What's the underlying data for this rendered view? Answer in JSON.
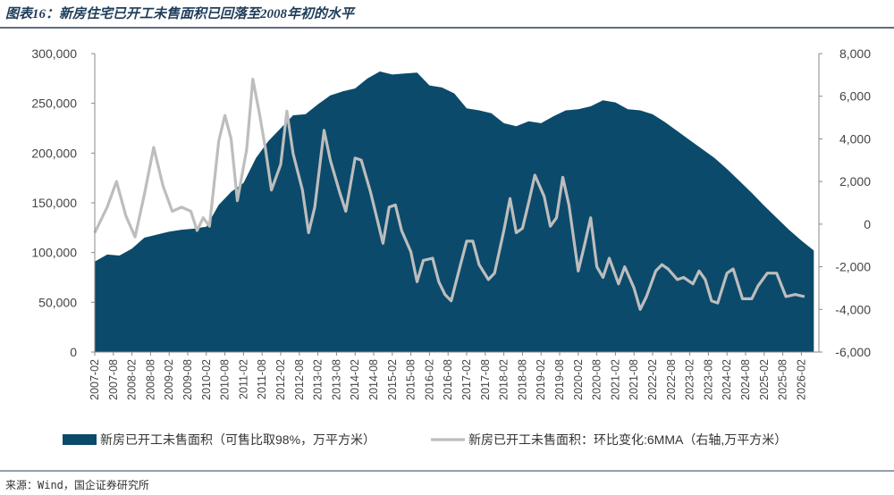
{
  "chart_data": {
    "type": "area",
    "title": "图表16：新房住宅已开工未售面积已回落至2008年初的水平",
    "source": "来源：Wind，国企证券研究所",
    "left_axis": {
      "ylim": [
        0,
        300000
      ],
      "ticks": [
        "300,000",
        "250,000",
        "200,000",
        "150,000",
        "100,000",
        "50,000",
        "0"
      ]
    },
    "right_axis": {
      "ylim": [
        -6000,
        8000
      ],
      "ticks": [
        "8,000",
        "6,000",
        "4,000",
        "2,000",
        "0",
        "-2,000",
        "-4,000",
        "-6,000"
      ]
    },
    "x_labels": [
      "2007-02",
      "2007-08",
      "2008-02",
      "2008-08",
      "2009-02",
      "2009-08",
      "2010-02",
      "2010-08",
      "2011-02",
      "2011-08",
      "2012-02",
      "2012-08",
      "2013-02",
      "2013-08",
      "2014-02",
      "2014-08",
      "2015-02",
      "2015-08",
      "2016-02",
      "2016-08",
      "2017-02",
      "2017-08",
      "2018-02",
      "2018-08",
      "2019-02",
      "2019-08",
      "2020-02",
      "2020-08",
      "2021-02",
      "2021-08",
      "2022-02",
      "2022-08",
      "2023-02",
      "2023-08",
      "2024-02",
      "2024-08",
      "2025-02",
      "2025-08",
      "2026-02"
    ],
    "grid": false,
    "legend_position": "bottom",
    "series": [
      {
        "name": "新房已开工未售面积（可售比取98%，万平方米）",
        "axis": "left",
        "kind": "area",
        "color": "#0b4a6b",
        "points": [
          [
            "2007-02",
            91000
          ],
          [
            "2007-06",
            98000
          ],
          [
            "2007-10",
            97000
          ],
          [
            "2008-02",
            104000
          ],
          [
            "2008-06",
            115000
          ],
          [
            "2008-10",
            118000
          ],
          [
            "2009-02",
            121000
          ],
          [
            "2009-06",
            123000
          ],
          [
            "2009-10",
            124000
          ],
          [
            "2010-02",
            126000
          ],
          [
            "2010-06",
            148000
          ],
          [
            "2010-10",
            161000
          ],
          [
            "2011-02",
            170000
          ],
          [
            "2011-06",
            195000
          ],
          [
            "2011-10",
            212000
          ],
          [
            "2012-02",
            225000
          ],
          [
            "2012-06",
            238000
          ],
          [
            "2012-10",
            239000
          ],
          [
            "2013-02",
            249000
          ],
          [
            "2013-06",
            258000
          ],
          [
            "2013-10",
            262000
          ],
          [
            "2014-02",
            265000
          ],
          [
            "2014-06",
            275000
          ],
          [
            "2014-10",
            282000
          ],
          [
            "2015-02",
            279000
          ],
          [
            "2015-06",
            280000
          ],
          [
            "2015-10",
            281000
          ],
          [
            "2016-02",
            268000
          ],
          [
            "2016-06",
            266000
          ],
          [
            "2016-10",
            260000
          ],
          [
            "2017-02",
            245000
          ],
          [
            "2017-06",
            243000
          ],
          [
            "2017-10",
            240000
          ],
          [
            "2018-02",
            230000
          ],
          [
            "2018-06",
            227000
          ],
          [
            "2018-10",
            232000
          ],
          [
            "2019-02",
            230000
          ],
          [
            "2019-06",
            237000
          ],
          [
            "2019-10",
            243000
          ],
          [
            "2020-02",
            244000
          ],
          [
            "2020-06",
            247000
          ],
          [
            "2020-10",
            253000
          ],
          [
            "2021-02",
            251000
          ],
          [
            "2021-06",
            244000
          ],
          [
            "2021-10",
            243000
          ],
          [
            "2022-02",
            239000
          ],
          [
            "2022-06",
            231000
          ],
          [
            "2022-10",
            222000
          ],
          [
            "2023-02",
            213000
          ],
          [
            "2023-06",
            204000
          ],
          [
            "2023-10",
            195000
          ],
          [
            "2024-02",
            184000
          ],
          [
            "2024-06",
            172000
          ],
          [
            "2024-10",
            160000
          ],
          [
            "2025-02",
            147000
          ],
          [
            "2025-06",
            135000
          ],
          [
            "2025-10",
            123000
          ],
          [
            "2026-02",
            112000
          ],
          [
            "2026-06",
            102000
          ]
        ]
      },
      {
        "name": "新房已开工未售面积：环比变化:6MMA（右轴,万平方米）",
        "axis": "right",
        "kind": "line",
        "color": "#bdbdbd",
        "points": [
          [
            "2007-02",
            -400
          ],
          [
            "2007-06",
            800
          ],
          [
            "2007-09",
            2000
          ],
          [
            "2007-12",
            400
          ],
          [
            "2008-03",
            -600
          ],
          [
            "2008-06",
            1400
          ],
          [
            "2008-09",
            3600
          ],
          [
            "2008-12",
            1800
          ],
          [
            "2009-03",
            600
          ],
          [
            "2009-06",
            800
          ],
          [
            "2009-09",
            600
          ],
          [
            "2009-11",
            -300
          ],
          [
            "2010-01",
            300
          ],
          [
            "2010-03",
            -100
          ],
          [
            "2010-06",
            3900
          ],
          [
            "2010-08",
            5100
          ],
          [
            "2010-10",
            4000
          ],
          [
            "2010-12",
            1100
          ],
          [
            "2011-03",
            3500
          ],
          [
            "2011-05",
            6800
          ],
          [
            "2011-07",
            5300
          ],
          [
            "2011-09",
            3600
          ],
          [
            "2011-11",
            1600
          ],
          [
            "2012-02",
            2800
          ],
          [
            "2012-04",
            5300
          ],
          [
            "2012-06",
            3300
          ],
          [
            "2012-09",
            1600
          ],
          [
            "2012-11",
            -400
          ],
          [
            "2013-01",
            800
          ],
          [
            "2013-04",
            4400
          ],
          [
            "2013-06",
            3000
          ],
          [
            "2013-09",
            1500
          ],
          [
            "2013-11",
            600
          ],
          [
            "2014-02",
            3100
          ],
          [
            "2014-04",
            3000
          ],
          [
            "2014-07",
            1500
          ],
          [
            "2014-09",
            300
          ],
          [
            "2014-11",
            -900
          ],
          [
            "2015-01",
            800
          ],
          [
            "2015-03",
            900
          ],
          [
            "2015-05",
            -300
          ],
          [
            "2015-08",
            -1300
          ],
          [
            "2015-10",
            -2700
          ],
          [
            "2015-12",
            -1700
          ],
          [
            "2016-03",
            -1600
          ],
          [
            "2016-05",
            -2700
          ],
          [
            "2016-07",
            -3300
          ],
          [
            "2016-09",
            -3600
          ],
          [
            "2016-12",
            -1900
          ],
          [
            "2017-02",
            -800
          ],
          [
            "2017-04",
            -800
          ],
          [
            "2017-06",
            -1900
          ],
          [
            "2017-09",
            -2600
          ],
          [
            "2017-11",
            -2300
          ],
          [
            "2018-02",
            -300
          ],
          [
            "2018-04",
            1200
          ],
          [
            "2018-06",
            -400
          ],
          [
            "2018-08",
            -200
          ],
          [
            "2018-10",
            1000
          ],
          [
            "2018-12",
            2300
          ],
          [
            "2019-03",
            1300
          ],
          [
            "2019-05",
            -100
          ],
          [
            "2019-07",
            300
          ],
          [
            "2019-09",
            2200
          ],
          [
            "2019-11",
            900
          ],
          [
            "2020-02",
            -2200
          ],
          [
            "2020-04",
            -1000
          ],
          [
            "2020-06",
            300
          ],
          [
            "2020-08",
            -2000
          ],
          [
            "2020-10",
            -2500
          ],
          [
            "2020-12",
            -1600
          ],
          [
            "2021-03",
            -2800
          ],
          [
            "2021-05",
            -2000
          ],
          [
            "2021-08",
            -3000
          ],
          [
            "2021-10",
            -4000
          ],
          [
            "2021-12",
            -3400
          ],
          [
            "2022-03",
            -2200
          ],
          [
            "2022-05",
            -1900
          ],
          [
            "2022-07",
            -2100
          ],
          [
            "2022-10",
            -2600
          ],
          [
            "2022-12",
            -2500
          ],
          [
            "2023-03",
            -2800
          ],
          [
            "2023-05",
            -2200
          ],
          [
            "2023-07",
            -2600
          ],
          [
            "2023-09",
            -3600
          ],
          [
            "2023-11",
            -3700
          ],
          [
            "2024-02",
            -2300
          ],
          [
            "2024-04",
            -2100
          ],
          [
            "2024-07",
            -3500
          ],
          [
            "2024-10",
            -3500
          ],
          [
            "2024-12",
            -2900
          ],
          [
            "2025-03",
            -2300
          ],
          [
            "2025-06",
            -2300
          ],
          [
            "2025-09",
            -3400
          ],
          [
            "2025-12",
            -3300
          ],
          [
            "2026-03",
            -3400
          ]
        ]
      }
    ]
  }
}
